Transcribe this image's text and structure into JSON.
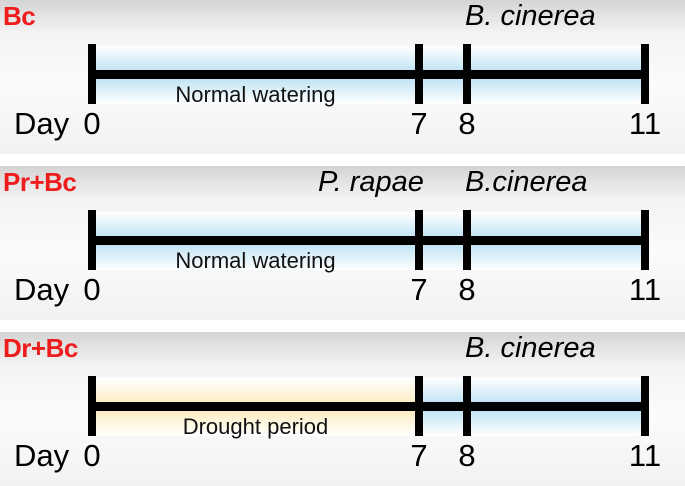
{
  "panels": [
    {
      "label": "Bc",
      "period_text": "Normal watering",
      "period_type": "water",
      "agents": [
        {
          "text": "B. cinerea",
          "day": 8
        }
      ]
    },
    {
      "label": "Pr+Bc",
      "period_text": "Normal watering",
      "period_type": "water",
      "agents": [
        {
          "text": "P. rapae",
          "day": 7
        },
        {
          "text": "B.cinerea",
          "day": 8
        }
      ]
    },
    {
      "label": "Dr+Bc",
      "period_text": "Drought period",
      "period_type": "drought",
      "agents": [
        {
          "text": "B. cinerea",
          "day": 8
        }
      ]
    }
  ],
  "axis": {
    "day_label": "Day",
    "ticks": [
      "0",
      "7",
      "8",
      "11"
    ]
  },
  "colors": {
    "label_red": "#ee1c1c",
    "water_blue": "#b7dff3",
    "drought_yellow": "#fbeab8",
    "line_black": "#000000"
  }
}
